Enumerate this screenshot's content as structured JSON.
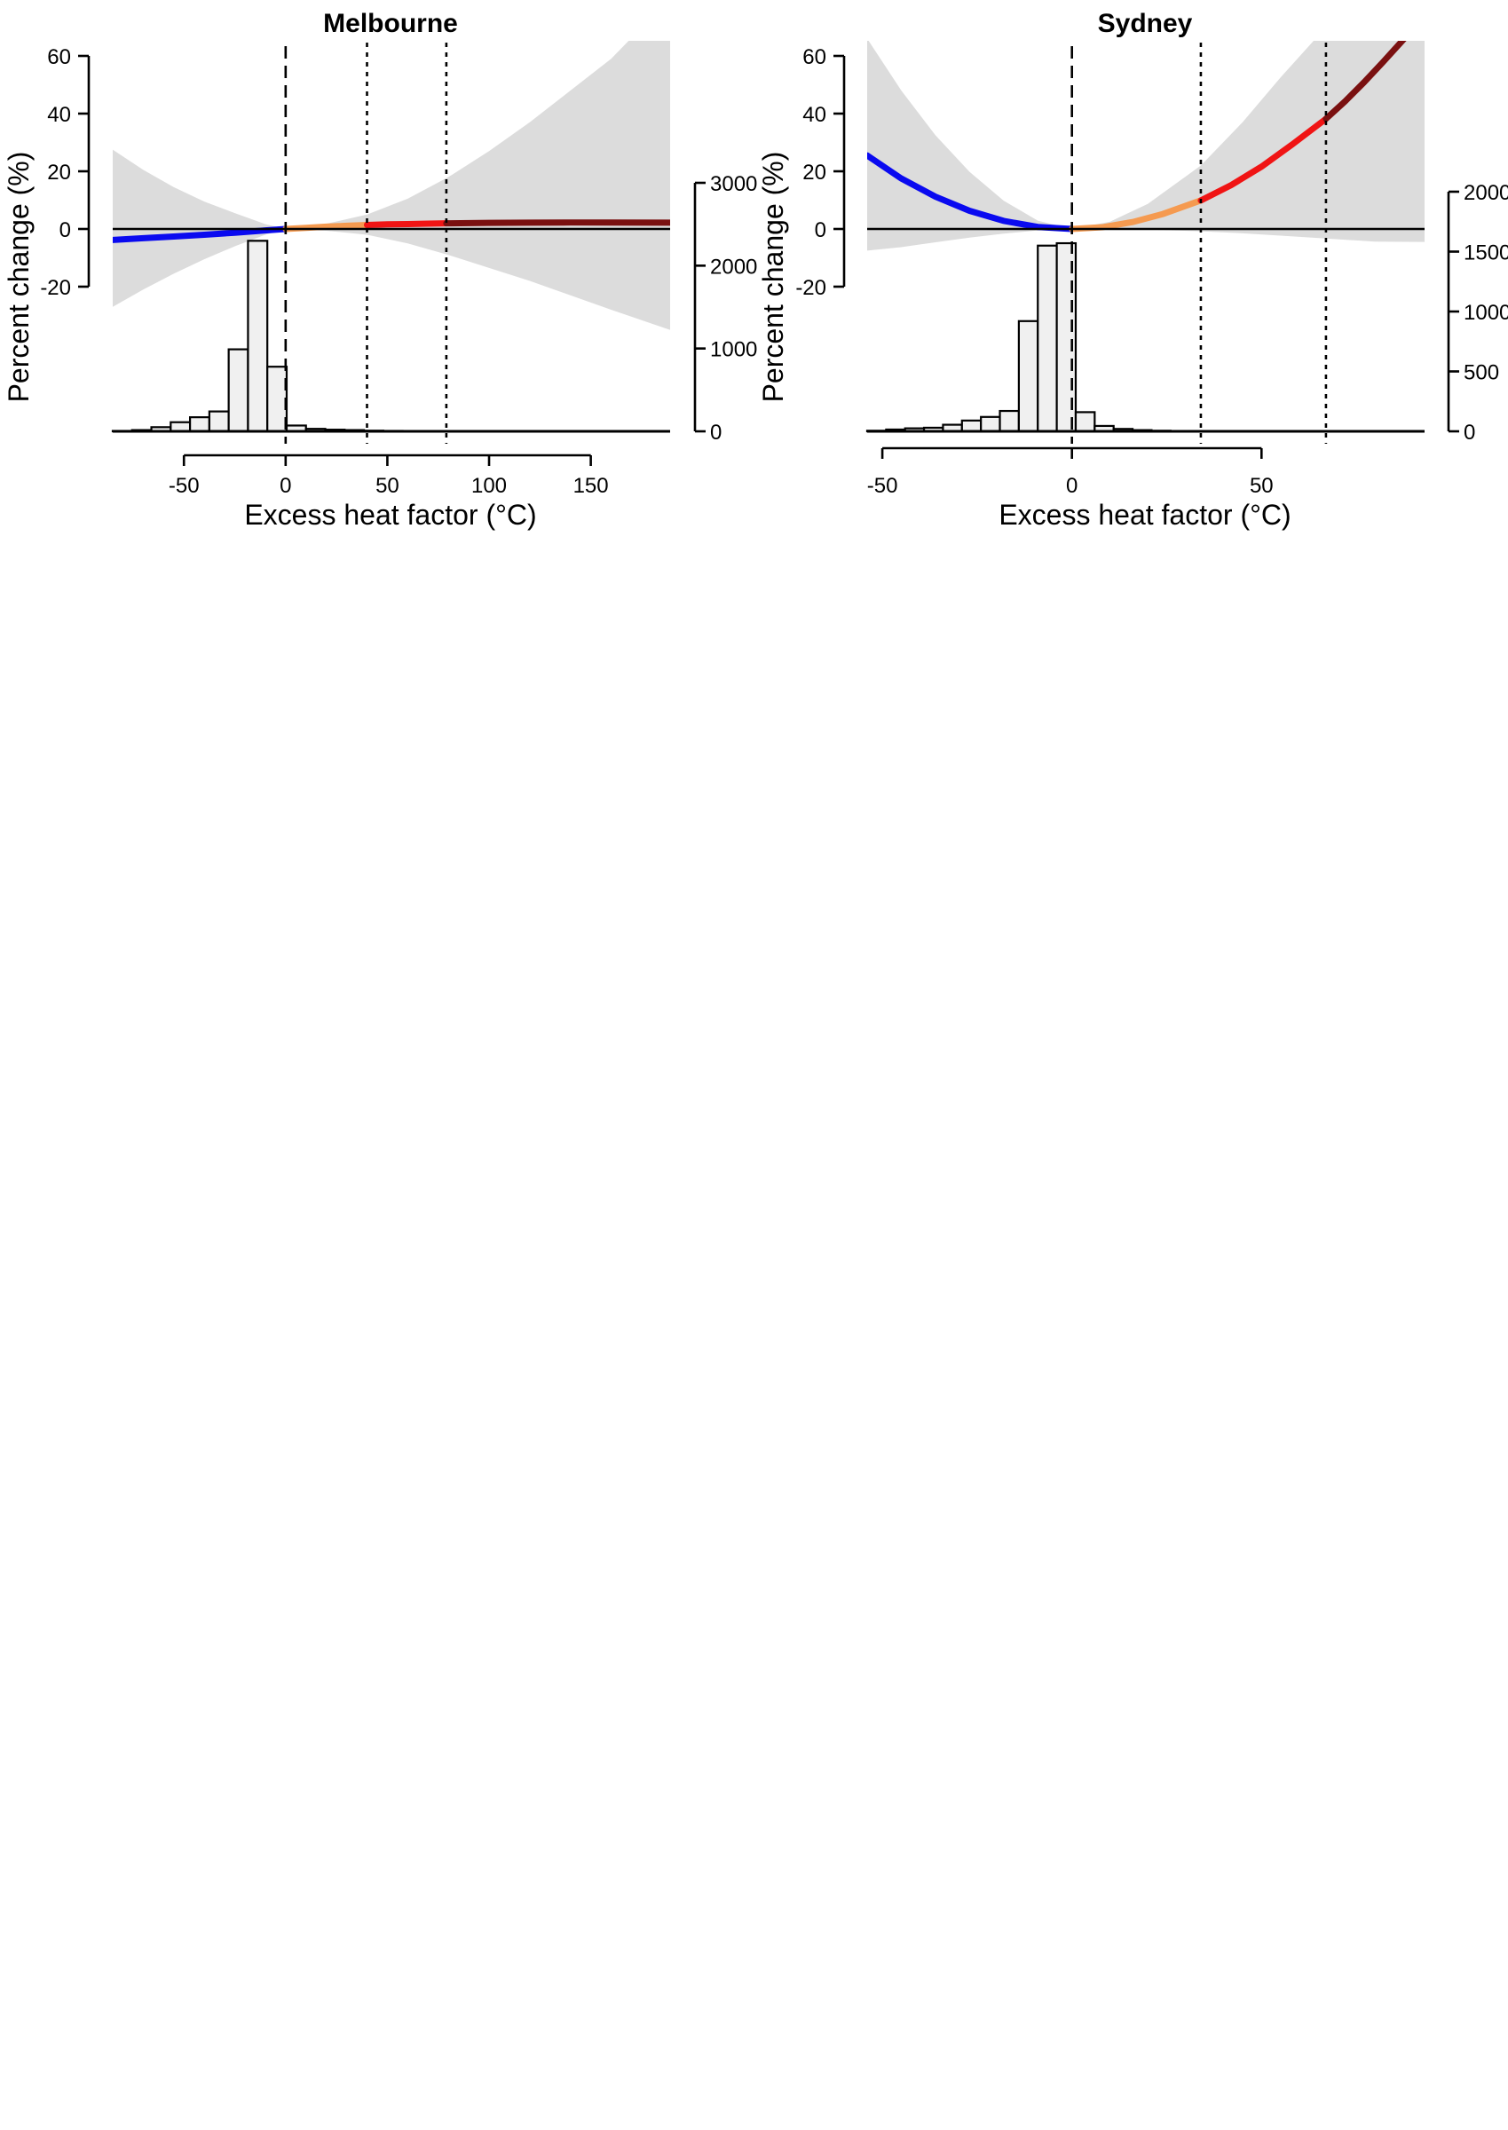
{
  "chart_data": [
    {
      "type": "line",
      "title": "Melbourne",
      "xlabel": "Excess heat factor (°C)",
      "ylabel": "Percent change (%)",
      "xlim": [
        -85,
        189
      ],
      "ylim": [
        -20,
        60
      ],
      "x_ticks": [
        -50,
        0,
        50,
        100,
        150
      ],
      "y_ticks": [
        -20,
        0,
        20,
        40,
        60
      ],
      "hist_axis_ticks": [
        0,
        1000,
        2000,
        3000
      ],
      "hist_axis_max": 3000,
      "reference_line_x": 0,
      "threshold_lines_x": [
        40,
        79
      ],
      "grid": false,
      "series": [
        {
          "color": "#0a0af0",
          "x": [
            -85,
            -70,
            -55,
            -40,
            -25,
            -10,
            0
          ],
          "y": [
            -3.8,
            -3.2,
            -2.6,
            -2.0,
            -1.3,
            -0.5,
            0
          ]
        },
        {
          "color": "#f59a50",
          "x": [
            0,
            10,
            20,
            30,
            40
          ],
          "y": [
            0,
            0.4,
            0.8,
            1.1,
            1.4
          ]
        },
        {
          "color": "#f01414",
          "x": [
            40,
            50,
            60,
            70,
            79
          ],
          "y": [
            1.4,
            1.6,
            1.7,
            1.85,
            1.95
          ]
        },
        {
          "color": "#7a1010",
          "x": [
            79,
            100,
            120,
            140,
            160,
            189
          ],
          "y": [
            1.95,
            2.1,
            2.2,
            2.25,
            2.25,
            2.2
          ]
        }
      ],
      "ci_band": {
        "x": [
          -85,
          -70,
          -55,
          -40,
          -25,
          -10,
          0,
          20,
          40,
          60,
          80,
          100,
          120,
          140,
          160,
          189
        ],
        "lower": [
          -27,
          -21,
          -15.5,
          -10.5,
          -6,
          -2,
          0,
          -0.6,
          -2,
          -5,
          -9,
          -13.5,
          -18,
          -23,
          -28,
          -35
        ],
        "upper": [
          27.5,
          20.5,
          14.5,
          9.5,
          5.5,
          1.7,
          0,
          1.8,
          5,
          10.5,
          18,
          27,
          37,
          48,
          59,
          80
        ]
      },
      "histogram": {
        "bin_width": 9.5,
        "bins": [
          {
            "x0": -85,
            "count": 5
          },
          {
            "x0": -75.5,
            "count": 15
          },
          {
            "x0": -66,
            "count": 50
          },
          {
            "x0": -56.5,
            "count": 110
          },
          {
            "x0": -47,
            "count": 170
          },
          {
            "x0": -37.5,
            "count": 240
          },
          {
            "x0": -28,
            "count": 990
          },
          {
            "x0": -18.5,
            "count": 2300
          },
          {
            "x0": -9,
            "count": 780
          },
          {
            "x0": 0.5,
            "count": 70
          },
          {
            "x0": 10,
            "count": 30
          },
          {
            "x0": 19.5,
            "count": 20
          },
          {
            "x0": 29,
            "count": 15
          },
          {
            "x0": 38.5,
            "count": 8
          },
          {
            "x0": 48,
            "count": 5
          },
          {
            "x0": 57.5,
            "count": 3
          },
          {
            "x0": 67,
            "count": 3
          },
          {
            "x0": 76.5,
            "count": 2
          },
          {
            "x0": 86,
            "count": 2
          },
          {
            "x0": 95.5,
            "count": 2
          }
        ]
      }
    },
    {
      "type": "line",
      "title": "Sydney",
      "xlabel": "Excess heat factor (°C)",
      "ylabel": "Percent change (%)",
      "xlim": [
        -54,
        93
      ],
      "ylim": [
        -20,
        60
      ],
      "x_ticks": [
        -50,
        0,
        50
      ],
      "y_ticks": [
        -20,
        0,
        20,
        40,
        60
      ],
      "hist_axis_ticks": [
        0,
        500,
        1000,
        1500,
        2000
      ],
      "hist_axis_max": 2000,
      "reference_line_x": 0,
      "threshold_lines_x": [
        34,
        67
      ],
      "grid": false,
      "series": [
        {
          "color": "#0a0af0",
          "x": [
            -54,
            -45,
            -36,
            -27,
            -18,
            -9,
            0
          ],
          "y": [
            25.5,
            17.5,
            11.2,
            6.3,
            2.8,
            0.7,
            0
          ]
        },
        {
          "color": "#f59a50",
          "x": [
            0,
            8,
            16,
            24,
            34
          ],
          "y": [
            0,
            0.6,
            2.4,
            5.2,
            9.9
          ]
        },
        {
          "color": "#f01414",
          "x": [
            34,
            42,
            50,
            58,
            67
          ],
          "y": [
            9.9,
            15.2,
            21.6,
            29.2,
            38.2
          ]
        },
        {
          "color": "#7a1010",
          "x": [
            67,
            72,
            77,
            82,
            88
          ],
          "y": [
            38.2,
            44.2,
            50.8,
            57.8,
            66.5
          ]
        }
      ],
      "ci_band": {
        "x": [
          -54,
          -45,
          -36,
          -27,
          -18,
          -9,
          0,
          10,
          20,
          34,
          45,
          55,
          67,
          80,
          93
        ],
        "lower": [
          -7.5,
          -6.3,
          -4.6,
          -3,
          -1.6,
          -0.5,
          0,
          -0.05,
          -0.2,
          -0.8,
          -1.5,
          -2.3,
          -3.3,
          -4.4,
          -4.5
        ],
        "upper": [
          66,
          48,
          32.5,
          19.8,
          9.8,
          2.9,
          0,
          2.5,
          8.7,
          22,
          37,
          52.5,
          70,
          85,
          90
        ]
      },
      "histogram": {
        "bin_width": 5,
        "bins": [
          {
            "x0": -54,
            "count": 5
          },
          {
            "x0": -49,
            "count": 15
          },
          {
            "x0": -44,
            "count": 25
          },
          {
            "x0": -39,
            "count": 30
          },
          {
            "x0": -34,
            "count": 55
          },
          {
            "x0": -29,
            "count": 90
          },
          {
            "x0": -24,
            "count": 120
          },
          {
            "x0": -19,
            "count": 170
          },
          {
            "x0": -14,
            "count": 920
          },
          {
            "x0": -9,
            "count": 1550
          },
          {
            "x0": -4,
            "count": 1570
          },
          {
            "x0": 1,
            "count": 160
          },
          {
            "x0": 6,
            "count": 45
          },
          {
            "x0": 11,
            "count": 20
          },
          {
            "x0": 16,
            "count": 10
          },
          {
            "x0": 21,
            "count": 5
          },
          {
            "x0": 26,
            "count": 3
          },
          {
            "x0": 31,
            "count": 3
          },
          {
            "x0": 36,
            "count": 2
          },
          {
            "x0": 41,
            "count": 2
          }
        ]
      }
    }
  ]
}
